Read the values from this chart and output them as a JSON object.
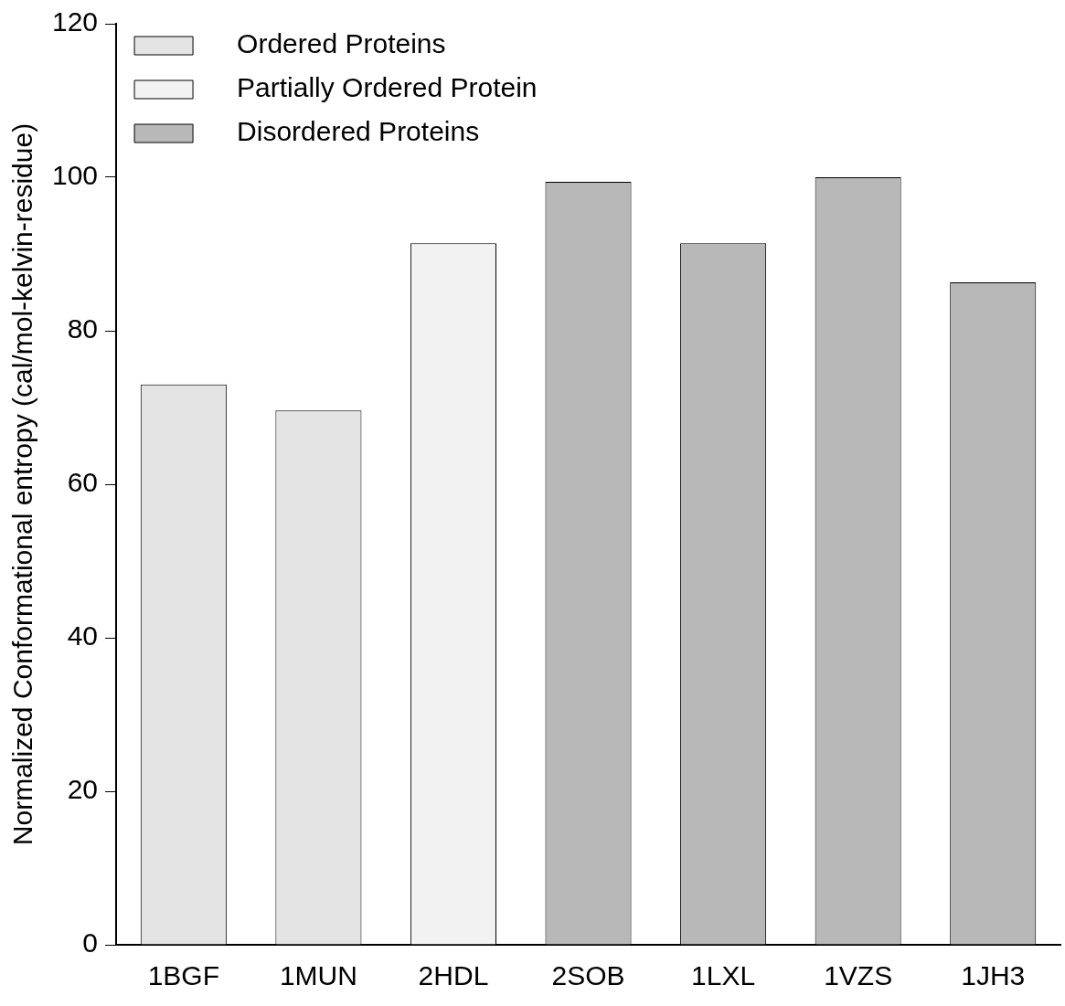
{
  "chart_data": {
    "type": "bar",
    "ylabel": "Normalized Conformational entropy (cal/mol-kelvin-residue)",
    "categories": [
      "1BGF",
      "1MUN",
      "2HDL",
      "2SOB",
      "1LXL",
      "1VZS",
      "1JH3"
    ],
    "series": [
      {
        "name": "Ordered Proteins",
        "color": "#e4e4e4",
        "values": [
          73,
          69.6,
          null,
          null,
          null,
          null,
          null
        ]
      },
      {
        "name": "Partially Ordered Protein",
        "color": "#f2f2f2",
        "values": [
          null,
          null,
          91.4,
          null,
          null,
          null,
          null
        ]
      },
      {
        "name": "Disordered Proteins",
        "color": "#b8b8b8",
        "values": [
          null,
          null,
          null,
          99.4,
          91.4,
          100,
          86.3
        ]
      }
    ],
    "ylim": [
      0,
      120
    ],
    "yticks": [
      0,
      20,
      40,
      60,
      80,
      100,
      120
    ],
    "grid": false,
    "legend": "top left"
  }
}
